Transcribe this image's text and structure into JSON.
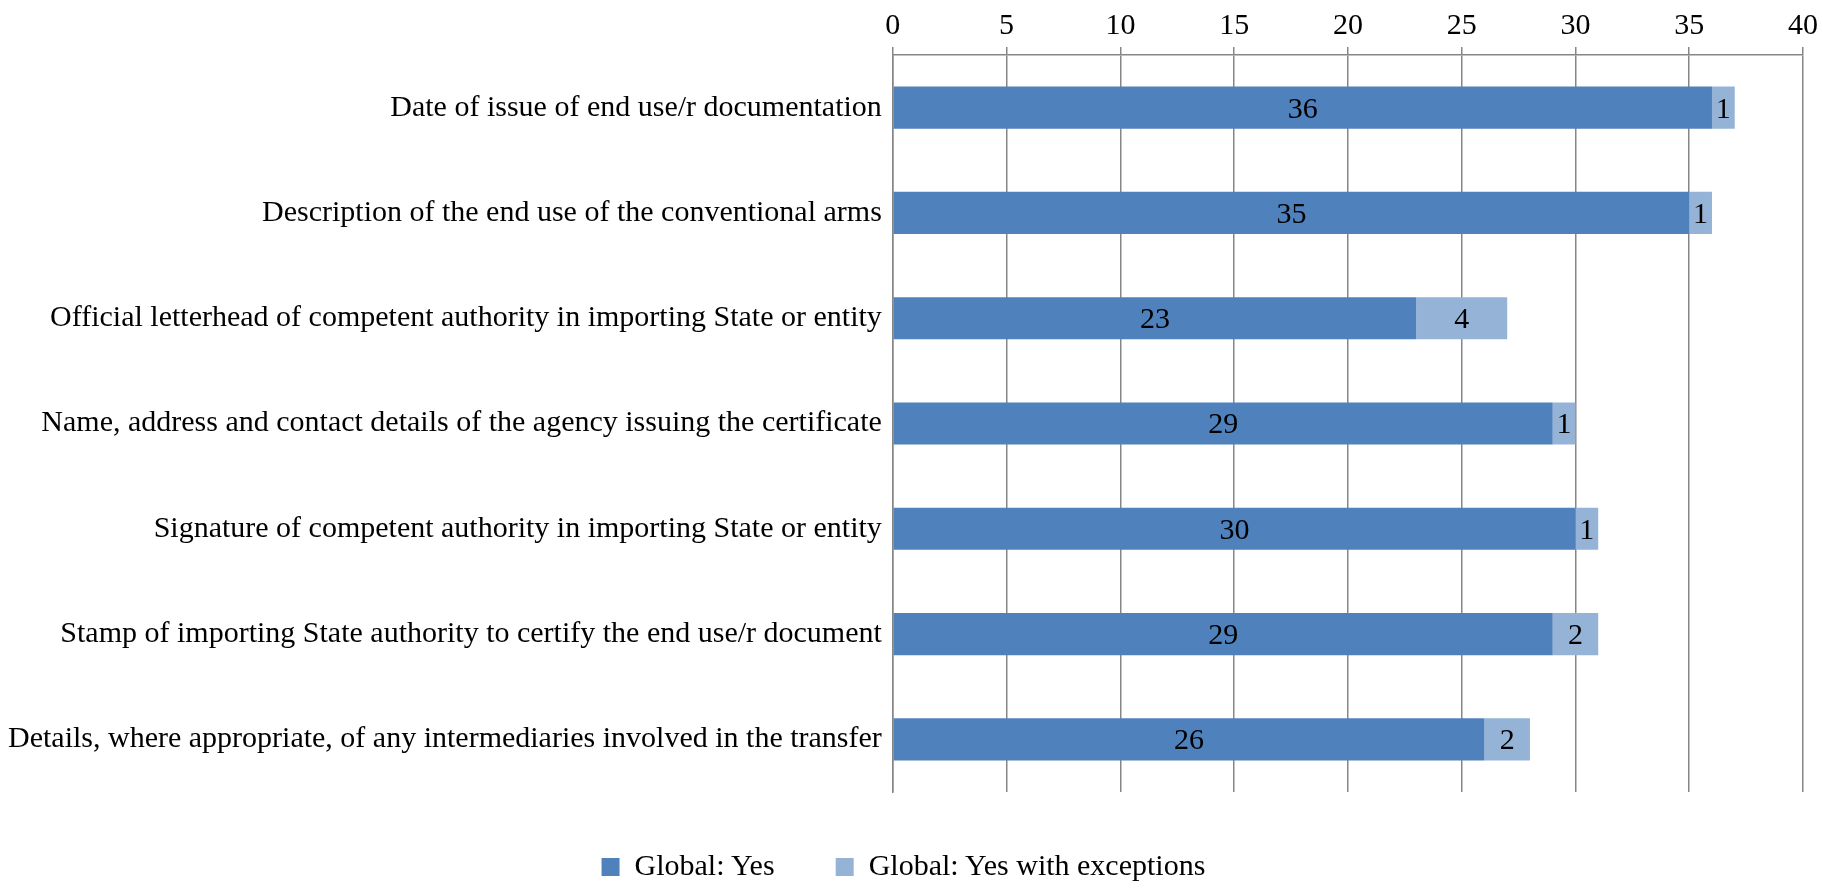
{
  "chart_data": {
    "type": "bar",
    "orientation": "horizontal",
    "stacked": true,
    "categories": [
      "Date of issue of end use/r documentation",
      "Description of the end use of the conventional arms",
      "Official letterhead of competent authority in importing State or entity",
      "Name, address and contact details of the agency issuing the certificate",
      "Signature of competent authority in importing State or entity",
      "Stamp of importing State authority to certify the end use/r document",
      "Details, where appropriate, of any intermediaries involved in the transfer"
    ],
    "series": [
      {
        "name": "Global: Yes",
        "color": "#4f81bd",
        "values": [
          36,
          35,
          23,
          29,
          30,
          29,
          26
        ]
      },
      {
        "name": "Global: Yes with exceptions",
        "color": "#95b3d7",
        "values": [
          1,
          1,
          4,
          1,
          1,
          2,
          2
        ]
      }
    ],
    "xlim": [
      0,
      40
    ],
    "xticks": [
      0,
      5,
      10,
      15,
      20,
      25,
      30,
      35,
      40
    ],
    "grid": "x",
    "legend": "bottom",
    "data_labels": true
  }
}
